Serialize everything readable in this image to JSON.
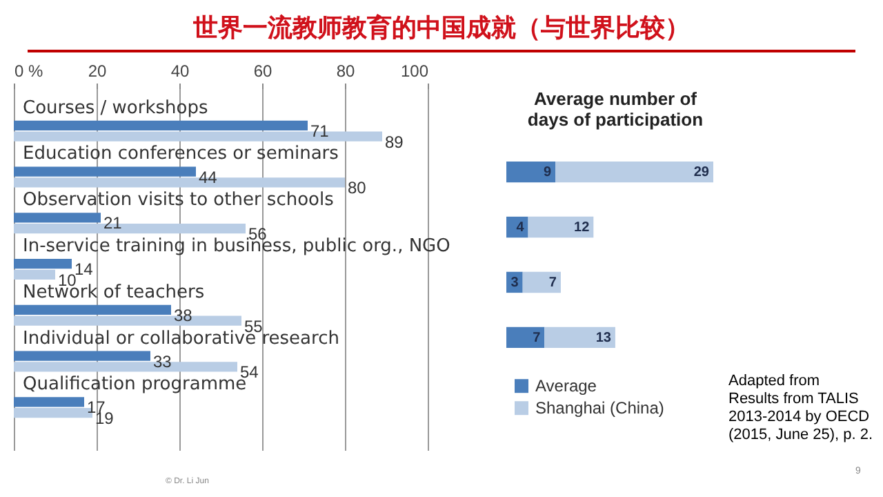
{
  "chart_data": [
    {
      "type": "bar",
      "orientation": "horizontal",
      "title": "世界一流教师教育的中国成就（与世界比较）",
      "categories": [
        "Courses / workshops",
        "Education conferences or seminars",
        "Observation visits to other schools",
        "In-service training in business, public org., NGO",
        "Network of teachers",
        "Individual or collaborative research",
        "Qualification programme"
      ],
      "series": [
        {
          "name": "Average",
          "color": "#4a7ebb",
          "values": [
            71,
            44,
            21,
            14,
            38,
            33,
            17
          ]
        },
        {
          "name": "Shanghai (China)",
          "color": "#b9cde5",
          "values": [
            89,
            80,
            56,
            10,
            55,
            54,
            19
          ]
        }
      ],
      "xlim": [
        0,
        100
      ],
      "xticks": [
        {
          "value": 0,
          "label": "0 %"
        },
        20,
        40,
        60,
        80,
        100
      ],
      "grid": "x",
      "data_labels": true,
      "legend": "right",
      "annotations": [
        "© Dr. Li Jun"
      ]
    },
    {
      "type": "bar",
      "orientation": "horizontal",
      "stacked": true,
      "title": "Average number of days of participation",
      "categories": [
        null,
        null,
        null,
        null
      ],
      "series": [
        {
          "color": "#4a7ebb",
          "values": [
            9,
            4,
            3,
            7
          ]
        },
        {
          "color": "#b9cde5",
          "values": [
            29,
            12,
            7,
            13
          ]
        }
      ],
      "tick_labels": false,
      "data_labels": true,
      "annotations": [
        "Adapted from Results from TALIS 2013-2014 by OECD (2015, June 25), p. 2.",
        "9"
      ]
    }
  ]
}
